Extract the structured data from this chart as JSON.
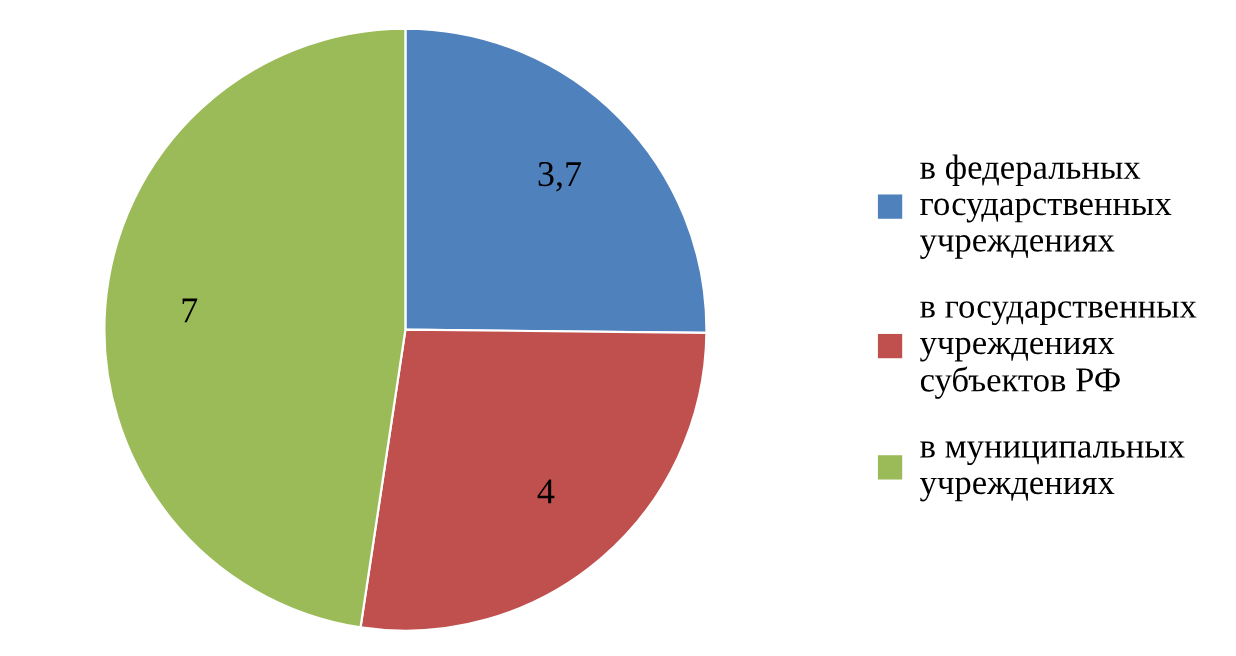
{
  "chart_data": {
    "type": "pie",
    "categories": [
      "в федеральных\nгосударственных\nучреждениях",
      "в государственных\nучреждениях\nсубъектов РФ",
      "в муниципальных\nучреждениях"
    ],
    "values": [
      3.7,
      4,
      7
    ],
    "value_labels": [
      "3,7",
      "4",
      "7"
    ],
    "colors": [
      "#4f81bd",
      "#c0504d",
      "#9bbb59"
    ],
    "legend": "right"
  }
}
